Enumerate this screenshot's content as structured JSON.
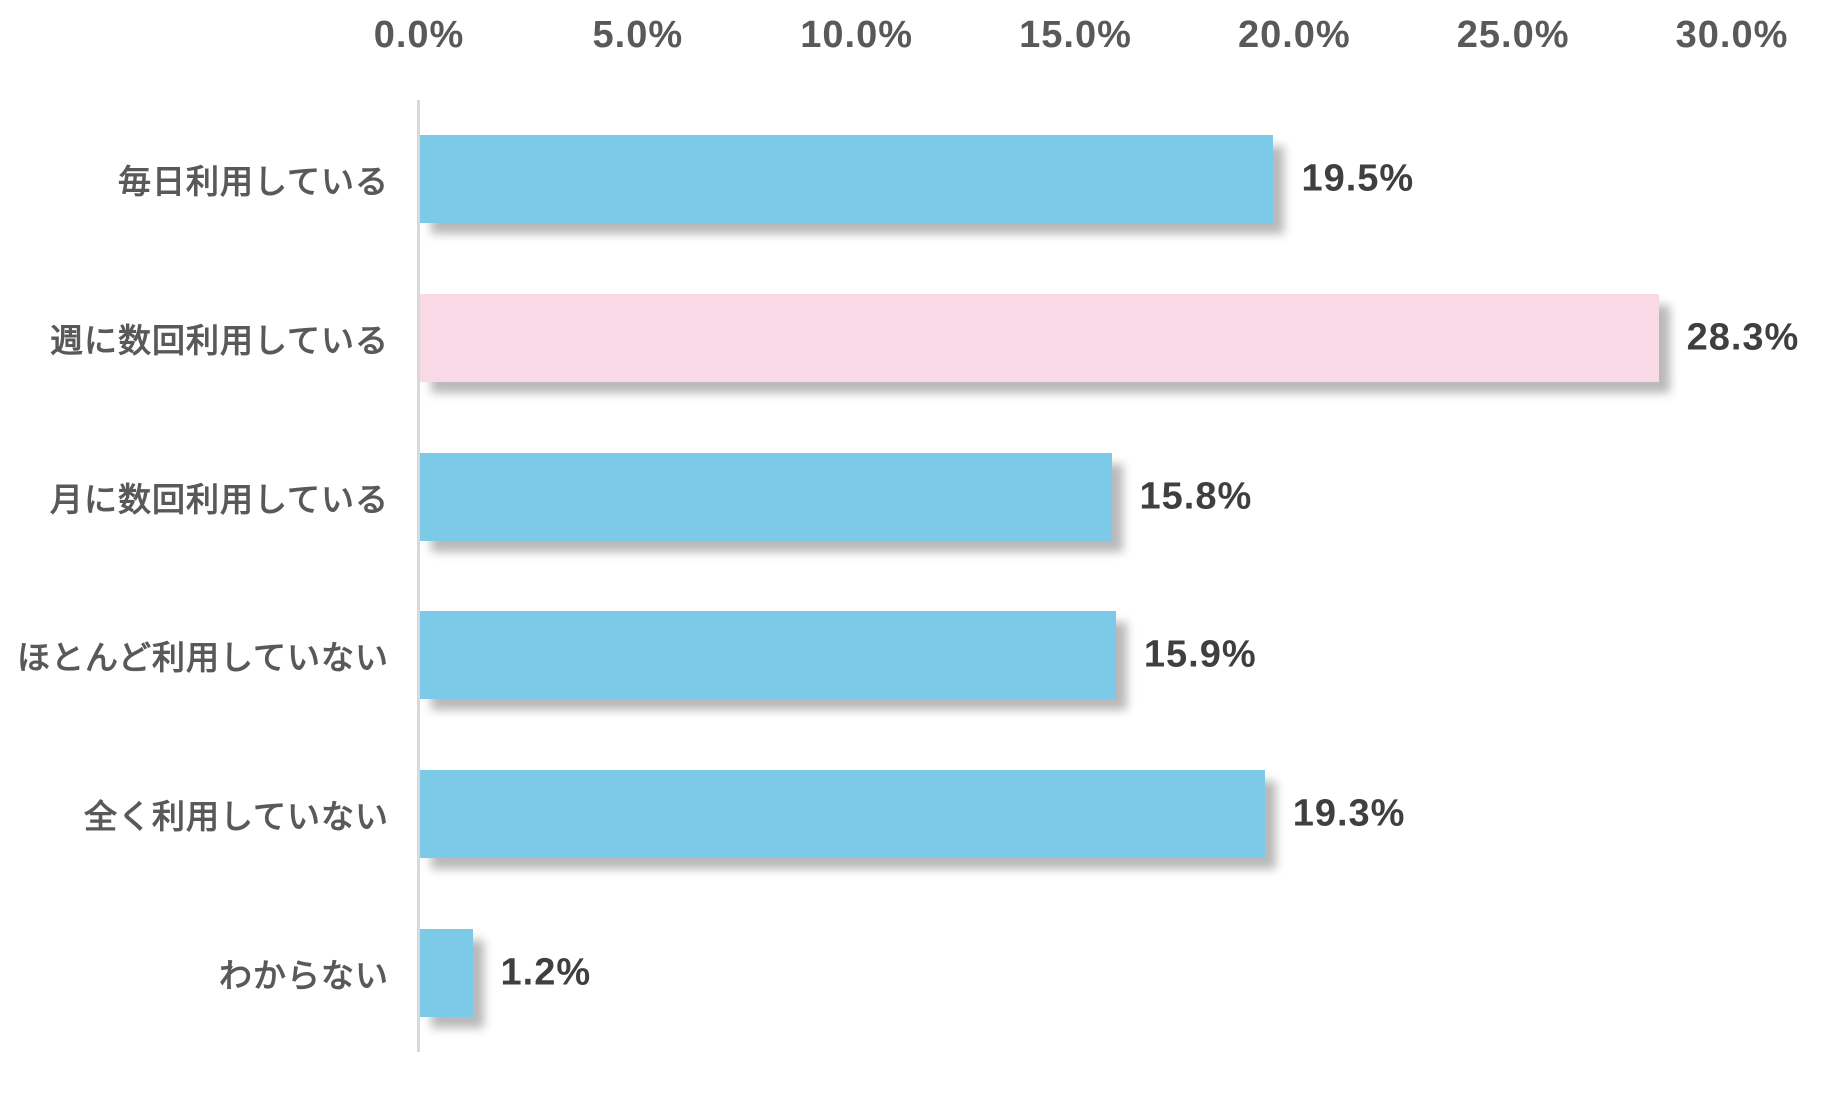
{
  "chart_data": {
    "type": "bar",
    "orientation": "horizontal",
    "title": "",
    "xlabel": "",
    "ylabel": "",
    "categories": [
      "毎日利用している",
      "週に数回利用している",
      "月に数回利用している",
      "ほとんど利用していない",
      "全く利用していない",
      "わからない"
    ],
    "values": [
      19.5,
      28.3,
      15.8,
      15.9,
      19.3,
      1.2
    ],
    "value_labels": [
      "19.5%",
      "28.3%",
      "15.8%",
      "15.9%",
      "19.3%",
      "1.2%"
    ],
    "x_ticks": [
      "0.0%",
      "5.0%",
      "10.0%",
      "15.0%",
      "20.0%",
      "25.0%",
      "30.0%"
    ],
    "xlim": [
      0,
      30
    ],
    "grid": "off",
    "legend_position": "none",
    "highlight_index": 1,
    "colors": {
      "bar": "#7cc9e8",
      "highlight_bar": "#f9d9e6",
      "axis_line": "#d9d9d9",
      "tick_text": "#595959",
      "category_text": "#595959",
      "value_text": "#3f3f3f"
    }
  }
}
